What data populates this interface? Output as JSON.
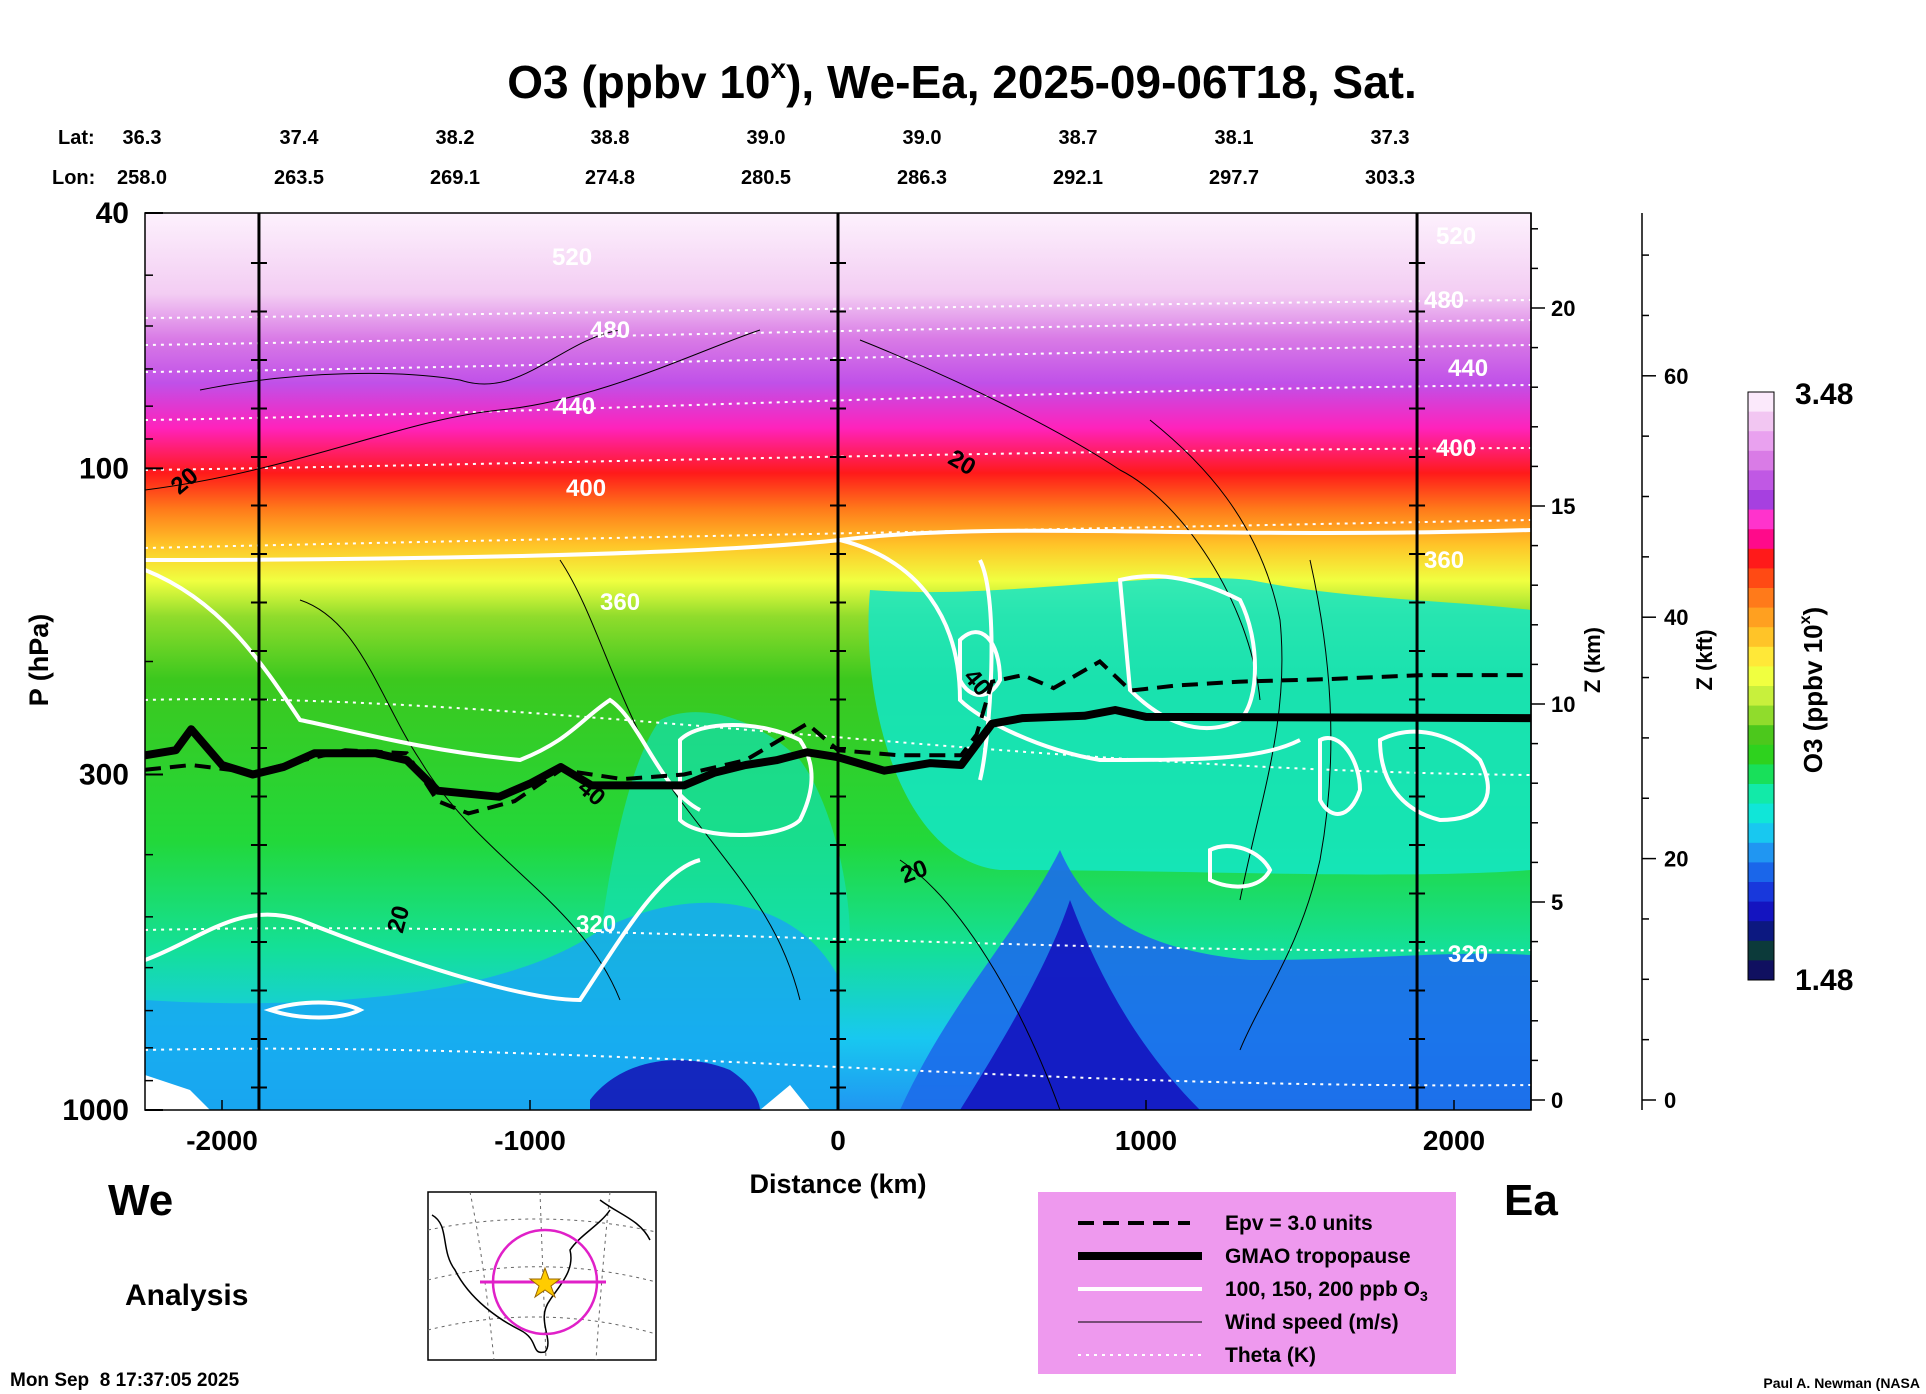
{
  "chart_data": {
    "type": "heatmap",
    "title": "O3 (ppbv 10",
    "title_sup": "x",
    "title_rest": "), We-Ea, 2025-09-06T18, Sat.",
    "lat_label": "Lat:",
    "lon_label": "Lon:",
    "lat": [
      "36.3",
      "37.4",
      "38.2",
      "38.8",
      "39.0",
      "39.0",
      "38.7",
      "38.1",
      "37.3"
    ],
    "lon": [
      "258.0",
      "263.5",
      "269.1",
      "274.8",
      "280.5",
      "286.3",
      "292.1",
      "297.7",
      "303.3"
    ],
    "xlabel": "Distance (km)",
    "x_ticks": [
      "-2000",
      "-1000",
      "0",
      "1000",
      "2000"
    ],
    "xlim": [
      -2250,
      2250
    ],
    "ylabel": "P (hPa)",
    "y_ticks": [
      "40",
      "100",
      "300",
      "1000"
    ],
    "ylim": [
      1000,
      40
    ],
    "y_scale": "log",
    "z_km_label": "Z (km)",
    "z_km_ticks": [
      "0",
      "5",
      "10",
      "15",
      "20"
    ],
    "z_kft_label": "Z (kft)",
    "z_kft_ticks": [
      "0",
      "20",
      "40",
      "60"
    ],
    "colorbar_label": "O3 (ppbv 10",
    "colorbar_label_sup": "x",
    "colorbar_label_rest": ")",
    "colorbar_max": "3.48",
    "colorbar_min": "1.48",
    "colorbar_colors": [
      "#fbe9fb",
      "#f2c6f2",
      "#e9a1ef",
      "#d97be6",
      "#c058e4",
      "#a640e0",
      "#ff33cc",
      "#ff0a8a",
      "#ff1a1a",
      "#ff4a14",
      "#ff7a1a",
      "#ffa020",
      "#ffc428",
      "#ffe838",
      "#f0ff40",
      "#c8f03c",
      "#90dc2c",
      "#4cc81c",
      "#2ed21e",
      "#18e05a",
      "#12eaa8",
      "#10e6d8",
      "#18c8f0",
      "#2096f2",
      "#1a66ea",
      "#1838dc",
      "#1414c0",
      "#0c1880",
      "#0c3a3a",
      "#101060"
    ],
    "theta_labels": [
      "520",
      "480",
      "440",
      "400",
      "360",
      "320",
      "520",
      "480",
      "440",
      "400",
      "360",
      "320"
    ],
    "wind_labels": [
      "20",
      "20",
      "40",
      "20",
      "40",
      "20"
    ],
    "tropopause_km": [
      [
        -2250,
        280
      ],
      [
        -2150,
        275
      ],
      [
        -2100,
        255
      ],
      [
        -2000,
        290
      ],
      [
        -1900,
        300
      ],
      [
        -1800,
        292
      ],
      [
        -1700,
        278
      ],
      [
        -1500,
        278
      ],
      [
        -1400,
        285
      ],
      [
        -1300,
        318
      ],
      [
        -1100,
        325
      ],
      [
        -1000,
        310
      ],
      [
        -900,
        292
      ],
      [
        -800,
        312
      ],
      [
        -500,
        312
      ],
      [
        -400,
        298
      ],
      [
        -300,
        290
      ],
      [
        -200,
        285
      ],
      [
        -100,
        277
      ],
      [
        0,
        282
      ],
      [
        150,
        296
      ],
      [
        300,
        288
      ],
      [
        400,
        290
      ],
      [
        500,
        250
      ],
      [
        600,
        245
      ],
      [
        800,
        243
      ],
      [
        900,
        238
      ],
      [
        1000,
        244
      ],
      [
        2250,
        245
      ]
    ],
    "epv_line": [
      [
        -2250,
        295
      ],
      [
        -2100,
        290
      ],
      [
        -1900,
        298
      ],
      [
        -1800,
        290
      ],
      [
        -1600,
        275
      ],
      [
        -1400,
        278
      ],
      [
        -1300,
        330
      ],
      [
        -1200,
        345
      ],
      [
        -1050,
        330
      ],
      [
        -900,
        295
      ],
      [
        -700,
        305
      ],
      [
        -500,
        300
      ],
      [
        -300,
        285
      ],
      [
        -100,
        250
      ],
      [
        0,
        275
      ],
      [
        200,
        280
      ],
      [
        400,
        280
      ],
      [
        450,
        260
      ],
      [
        500,
        215
      ],
      [
        600,
        210
      ],
      [
        700,
        220
      ],
      [
        850,
        200
      ],
      [
        950,
        222
      ],
      [
        1100,
        218
      ],
      [
        1300,
        215
      ],
      [
        1600,
        213
      ],
      [
        1900,
        210
      ],
      [
        2250,
        210
      ]
    ],
    "legend": [
      {
        "label": "Epv = 3.0 units",
        "style": "dashed"
      },
      {
        "label": "GMAO tropopause",
        "style": "thick"
      },
      {
        "label": "100, 150, 200 ppb O",
        "label_sub": "3",
        "style": "white"
      },
      {
        "label": "Wind speed (m/s)",
        "style": "thin"
      },
      {
        "label": "Theta (K)",
        "style": "dotted"
      }
    ],
    "legend_color": "#ee99ee",
    "left_label": "We",
    "right_label": "Ea"
  },
  "analysis_label": "Analysis",
  "timestamp": "Mon Sep  8 17:37:05 2025",
  "credit": "Paul A. Newman (NASA"
}
